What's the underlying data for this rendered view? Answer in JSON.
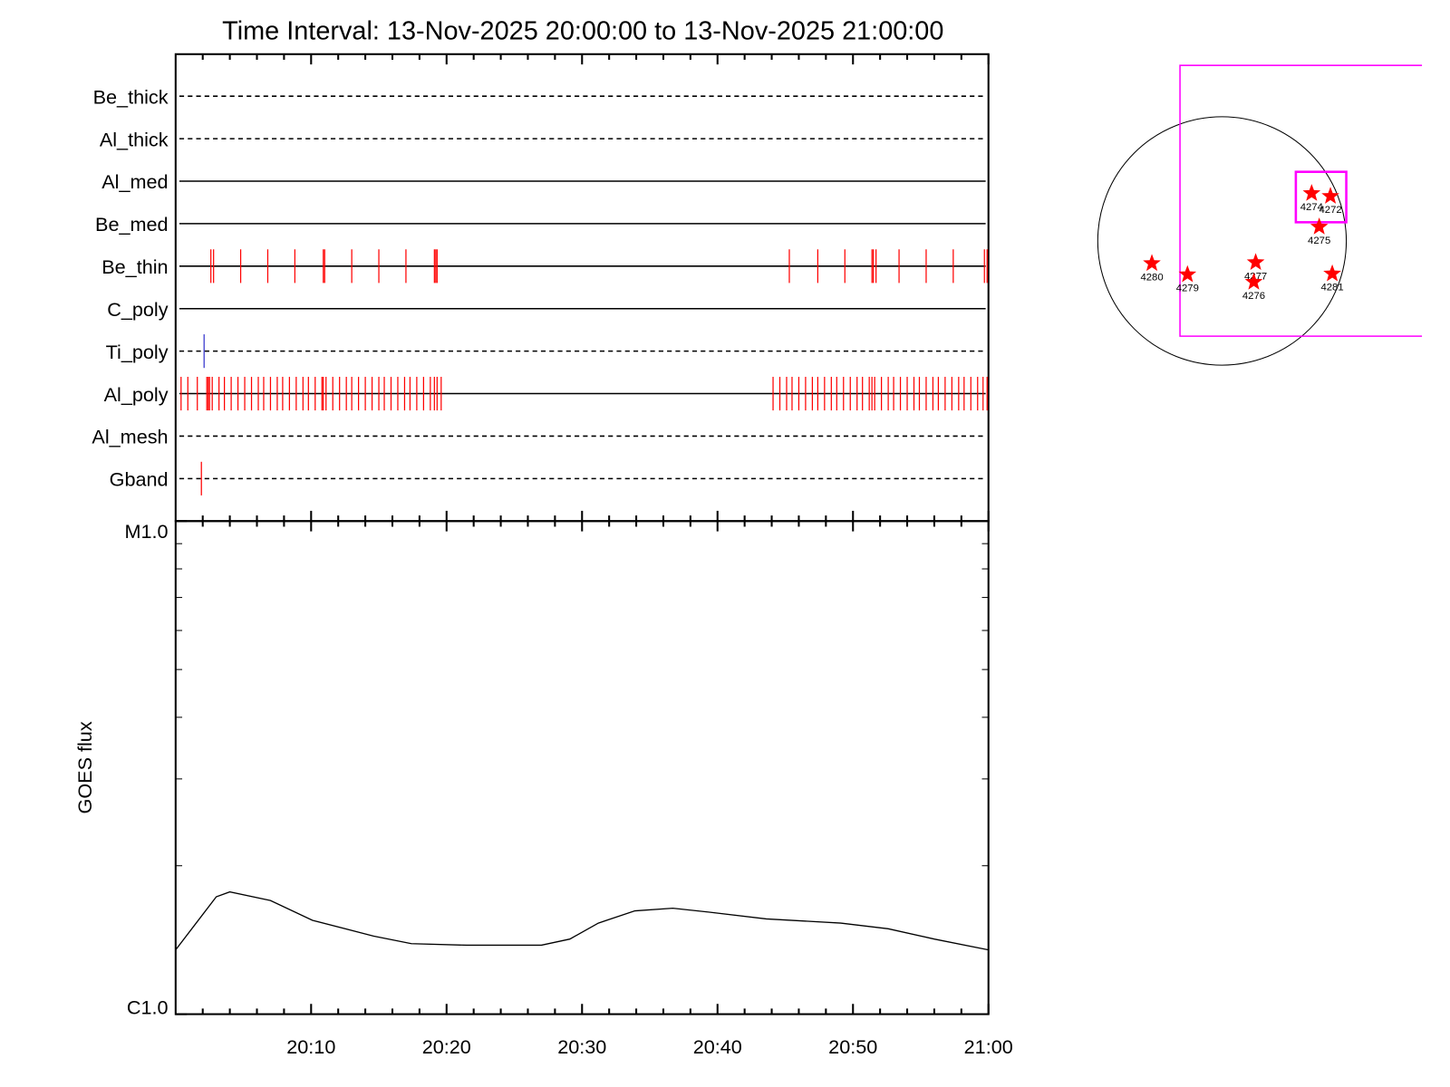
{
  "chart_data": {
    "type": "event-timeline",
    "title": "Time Interval: 13-Nov-2025 20:00:00 to 13-Nov-2025 21:00:00",
    "xlim": [
      0,
      60
    ],
    "xticks": [
      {
        "value": 10,
        "label": "20:10"
      },
      {
        "value": 20,
        "label": "20:20"
      },
      {
        "value": 30,
        "label": "20:30"
      },
      {
        "value": 40,
        "label": "20:40"
      },
      {
        "value": 50,
        "label": "20:50"
      },
      {
        "value": 60,
        "label": "21:00"
      }
    ],
    "xminorticks": [
      2,
      4,
      6,
      8,
      12,
      14,
      16,
      18,
      22,
      24,
      26,
      28,
      32,
      34,
      36,
      38,
      42,
      44,
      46,
      48,
      52,
      54,
      56,
      58
    ],
    "filters": [
      {
        "name": "Be_thick",
        "line": "dashed",
        "color": "#ff0000",
        "events": []
      },
      {
        "name": "Al_thick",
        "line": "dashed",
        "color": "#ff0000",
        "events": []
      },
      {
        "name": "Al_med",
        "line": "solid",
        "color": "#ff0000",
        "events": []
      },
      {
        "name": "Be_med",
        "line": "solid",
        "color": "#ff0000",
        "events": []
      },
      {
        "name": "Be_thin",
        "line": "solid",
        "color": "#ff0000",
        "events": [
          2.6,
          2.8,
          4.8,
          6.8,
          8.8,
          10.9,
          11.0,
          13.0,
          15.0,
          17.0,
          19.1,
          19.2,
          19.3,
          45.3,
          47.4,
          49.4,
          51.4,
          51.5,
          51.7,
          53.4,
          55.4,
          57.4,
          59.7,
          59.9
        ]
      },
      {
        "name": "C_poly",
        "line": "solid",
        "color": "#ff0000",
        "events": []
      },
      {
        "name": "Ti_poly",
        "line": "dashed",
        "color": "#3333cc",
        "events": [
          2.1
        ]
      },
      {
        "name": "Al_poly",
        "line": "solid",
        "color": "#ff0000",
        "events": [
          0.4,
          0.9,
          1.6,
          2.3,
          2.4,
          2.5,
          2.7,
          3.2,
          3.6,
          4.1,
          4.6,
          5.1,
          5.6,
          6.1,
          6.5,
          7.0,
          7.5,
          7.9,
          8.4,
          8.9,
          9.4,
          9.8,
          10.3,
          10.8,
          10.9,
          11.1,
          11.6,
          12.1,
          12.6,
          13.0,
          13.5,
          14.0,
          14.5,
          15.0,
          15.4,
          15.9,
          16.4,
          16.9,
          17.3,
          17.8,
          18.3,
          18.8,
          19.1,
          19.3,
          19.6,
          44.1,
          44.6,
          45.1,
          45.5,
          46.0,
          46.5,
          47.0,
          47.4,
          47.9,
          48.4,
          48.8,
          49.3,
          49.8,
          50.3,
          50.7,
          51.2,
          51.4,
          51.6,
          52.1,
          52.6,
          53.0,
          53.5,
          54.0,
          54.5,
          54.9,
          55.4,
          55.9,
          56.3,
          56.8,
          57.3,
          57.8,
          58.2,
          58.7,
          59.2,
          59.6,
          59.9
        ]
      },
      {
        "name": "Al_mesh",
        "line": "dashed",
        "color": "#ff0000",
        "events": []
      },
      {
        "name": "Gband",
        "line": "dashed",
        "color": "#ff0000",
        "events": [
          1.9
        ]
      }
    ],
    "goes": {
      "type": "line",
      "ylabel": "GOES flux",
      "log": true,
      "color": "#000000",
      "ylim": [
        1e-06,
        1e-05
      ],
      "yticks": [
        {
          "value": 1e-06,
          "label": "C1.0"
        },
        {
          "value": 1e-05,
          "label": "M1.0"
        }
      ],
      "yminorticks": [
        2e-06,
        3e-06,
        4e-06,
        5e-06,
        6e-06,
        7e-06,
        8e-06,
        9e-06
      ],
      "x": [
        0,
        3,
        4,
        7,
        10.1,
        14.6,
        17.4,
        21.5,
        27,
        29.1,
        31.2,
        33.9,
        36.7,
        39.4,
        43.6,
        49.1,
        52.6,
        56,
        60
      ],
      "values": [
        1.35e-06,
        1.73e-06,
        1.77e-06,
        1.7e-06,
        1.55e-06,
        1.44e-06,
        1.39e-06,
        1.38e-06,
        1.38e-06,
        1.42e-06,
        1.53e-06,
        1.62e-06,
        1.64e-06,
        1.61e-06,
        1.56e-06,
        1.53e-06,
        1.49e-06,
        1.42e-06,
        1.35e-06
      ]
    },
    "map": {
      "type": "scatter",
      "color": "#ff0000",
      "regions": [
        {
          "label": "4274",
          "x": 700,
          "y": 372
        },
        {
          "label": "4272",
          "x": 847,
          "y": 350
        },
        {
          "label": "4275",
          "x": 759,
          "y": 110
        },
        {
          "label": "4280",
          "x": -548,
          "y": -175
        },
        {
          "label": "4279",
          "x": -270,
          "y": -263
        },
        {
          "label": "4277",
          "x": 263,
          "y": -168
        },
        {
          "label": "4276",
          "x": 248,
          "y": -321
        },
        {
          "label": "4281",
          "x": 861,
          "y": -256
        }
      ]
    }
  }
}
